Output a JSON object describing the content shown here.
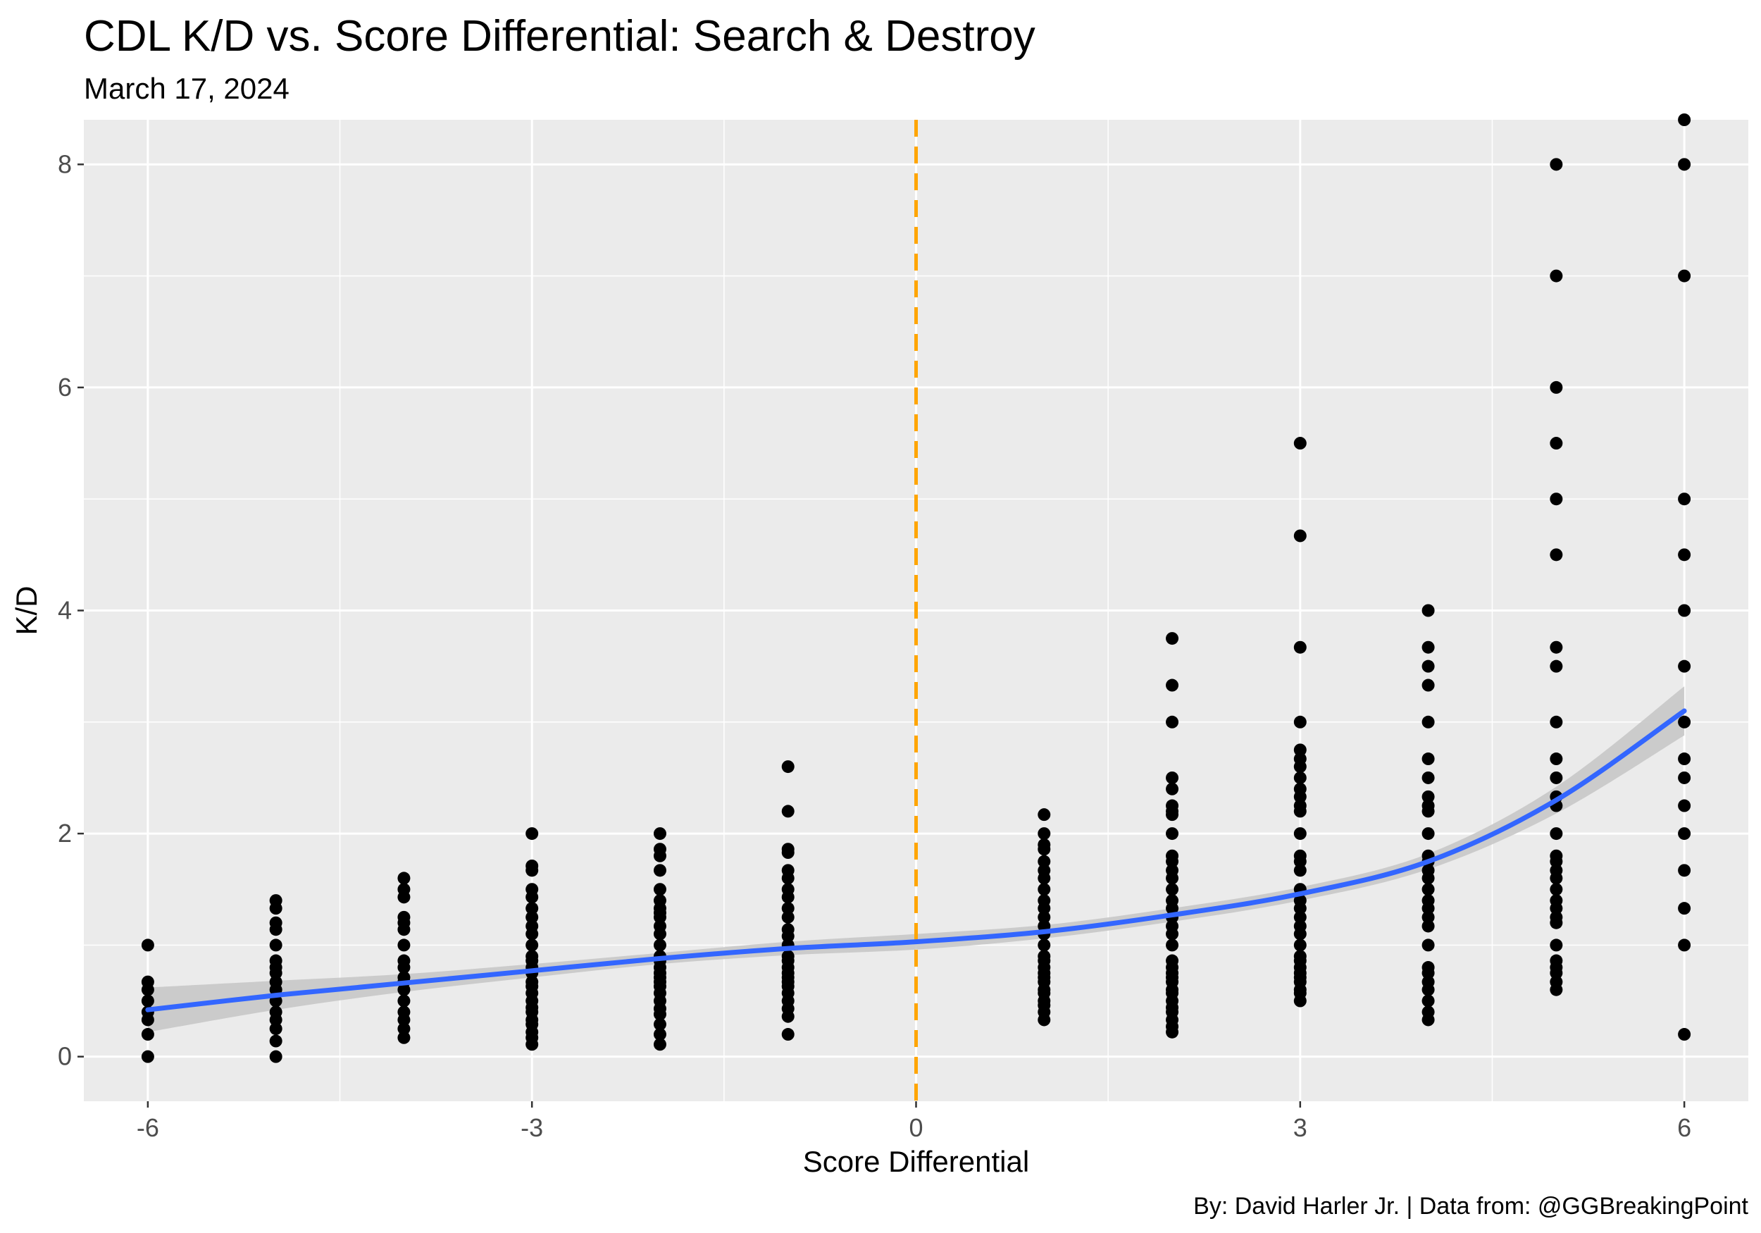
{
  "title": "CDL K/D vs. Score Differential: Search & Destroy",
  "subtitle": "March 17, 2024",
  "caption": "By: David Harler Jr. | Data from: @GGBreakingPoint",
  "colors": {
    "panel_background": "#EBEBEB",
    "gridline": "#FFFFFF",
    "points": "#000000",
    "smooth_line": "#3366FF",
    "confidence_band": "#C8C8C8",
    "reference_line": "#FFA500"
  },
  "chart_data": {
    "type": "scatter",
    "xlabel": "Score Differential",
    "ylabel": "K/D",
    "xlim": [
      -6.5,
      6.5
    ],
    "ylim": [
      -0.4,
      8.4
    ],
    "x_ticks": [
      -6,
      -3,
      0,
      3,
      6
    ],
    "y_ticks": [
      0,
      2,
      4,
      6,
      8
    ],
    "grid": true,
    "reference_line": {
      "orientation": "vertical",
      "x": 0,
      "style": "dashed"
    },
    "points": [
      {
        "x": -6,
        "y": [
          0,
          0.2,
          0.33,
          0.4,
          0.5,
          0.6,
          0.67,
          1.0
        ]
      },
      {
        "x": -5,
        "y": [
          0,
          0.14,
          0.25,
          0.33,
          0.4,
          0.5,
          0.6,
          0.67,
          0.75,
          0.8,
          0.86,
          1.0,
          1.14,
          1.2,
          1.33,
          1.4
        ]
      },
      {
        "x": -4,
        "y": [
          0.17,
          0.25,
          0.33,
          0.4,
          0.5,
          0.6,
          0.67,
          0.71,
          0.8,
          0.86,
          1.0,
          1.14,
          1.2,
          1.25,
          1.43,
          1.5,
          1.6
        ]
      },
      {
        "x": -3,
        "y": [
          0.11,
          0.17,
          0.22,
          0.29,
          0.33,
          0.4,
          0.44,
          0.5,
          0.57,
          0.63,
          0.67,
          0.75,
          0.8,
          0.86,
          0.9,
          1.0,
          1.1,
          1.17,
          1.25,
          1.33,
          1.43,
          1.5,
          1.67,
          1.71,
          2.0
        ]
      },
      {
        "x": -2,
        "y": [
          0.11,
          0.2,
          0.29,
          0.38,
          0.43,
          0.5,
          0.57,
          0.63,
          0.67,
          0.71,
          0.75,
          0.8,
          0.86,
          0.9,
          1.0,
          1.1,
          1.17,
          1.25,
          1.29,
          1.33,
          1.4,
          1.5,
          1.67,
          1.8,
          1.86,
          2.0
        ]
      },
      {
        "x": -1,
        "y": [
          0.2,
          0.36,
          0.43,
          0.5,
          0.57,
          0.63,
          0.67,
          0.71,
          0.75,
          0.8,
          0.86,
          0.9,
          1.0,
          1.08,
          1.14,
          1.25,
          1.33,
          1.43,
          1.5,
          1.6,
          1.67,
          1.83,
          1.86,
          2.2,
          2.6
        ]
      },
      {
        "x": 1,
        "y": [
          0.33,
          0.4,
          0.46,
          0.5,
          0.57,
          0.6,
          0.67,
          0.71,
          0.75,
          0.8,
          0.86,
          0.9,
          1.0,
          1.1,
          1.17,
          1.25,
          1.33,
          1.4,
          1.5,
          1.6,
          1.67,
          1.75,
          1.86,
          1.9,
          2.0,
          2.17
        ]
      },
      {
        "x": 2,
        "y": [
          0.22,
          0.27,
          0.33,
          0.4,
          0.44,
          0.5,
          0.57,
          0.6,
          0.67,
          0.71,
          0.75,
          0.8,
          0.86,
          1.0,
          1.1,
          1.17,
          1.25,
          1.33,
          1.4,
          1.5,
          1.6,
          1.67,
          1.75,
          1.8,
          2.0,
          2.17,
          2.2,
          2.25,
          2.4,
          2.5,
          3.0,
          3.33,
          3.75
        ]
      },
      {
        "x": 3,
        "y": [
          0.5,
          0.57,
          0.6,
          0.67,
          0.71,
          0.75,
          0.8,
          0.86,
          0.9,
          1.0,
          1.1,
          1.17,
          1.25,
          1.33,
          1.4,
          1.5,
          1.67,
          1.75,
          1.8,
          2.0,
          2.2,
          2.25,
          2.33,
          2.4,
          2.5,
          2.6,
          2.67,
          2.75,
          3.0,
          3.67,
          4.67,
          5.5
        ]
      },
      {
        "x": 4,
        "y": [
          0.33,
          0.4,
          0.5,
          0.6,
          0.67,
          0.75,
          0.8,
          1.0,
          1.17,
          1.25,
          1.33,
          1.4,
          1.5,
          1.6,
          1.67,
          1.75,
          1.8,
          2.0,
          2.2,
          2.25,
          2.33,
          2.5,
          2.67,
          3.0,
          3.33,
          3.5,
          3.67,
          4.0
        ]
      },
      {
        "x": 5,
        "y": [
          0.6,
          0.67,
          0.75,
          0.8,
          0.86,
          1.0,
          1.2,
          1.25,
          1.33,
          1.4,
          1.5,
          1.6,
          1.67,
          1.75,
          1.8,
          2.0,
          2.25,
          2.33,
          2.5,
          2.67,
          3.0,
          3.5,
          3.67,
          4.5,
          5.0,
          5.5,
          6.0,
          7.0,
          8.0
        ]
      },
      {
        "x": 6,
        "y": [
          0.2,
          1.0,
          1.33,
          1.67,
          2.0,
          2.25,
          2.5,
          2.67,
          3.0,
          3.5,
          4.0,
          4.5,
          5.0,
          7.0,
          8.0,
          8.4
        ]
      }
    ],
    "smooth": {
      "x": [
        -6,
        -5,
        -4,
        -3,
        -2,
        -1,
        0,
        1,
        2,
        3,
        4,
        5,
        6
      ],
      "y": [
        0.42,
        0.55,
        0.66,
        0.77,
        0.88,
        0.97,
        1.03,
        1.12,
        1.27,
        1.46,
        1.75,
        2.3,
        3.1
      ],
      "lower": [
        0.22,
        0.42,
        0.58,
        0.71,
        0.83,
        0.91,
        0.96,
        1.06,
        1.21,
        1.4,
        1.68,
        2.18,
        2.88
      ],
      "upper": [
        0.62,
        0.68,
        0.74,
        0.83,
        0.93,
        1.03,
        1.1,
        1.18,
        1.33,
        1.52,
        1.82,
        2.42,
        3.32
      ]
    }
  }
}
